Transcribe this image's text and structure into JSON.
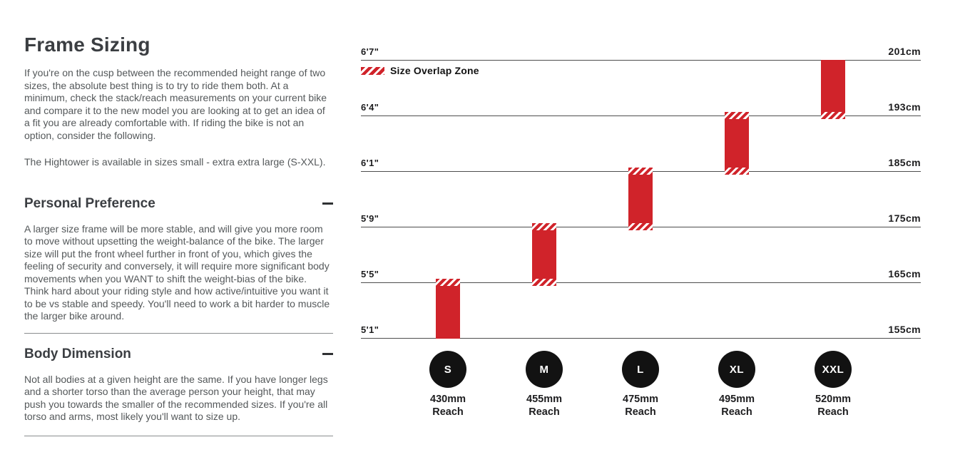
{
  "page": {
    "title": "Frame Sizing",
    "intro": "If you're on the cusp between the recommended height range of two sizes, the absolute best thing is to try to ride them both. At a minimum, check the stack/reach measurements on your current bike and compare it to the new model you are looking at to get an idea of a fit you are already comfortable with. If riding the bike is not an option, consider the following.",
    "availability": "The Hightower is available in sizes small - extra extra large (S-XXL).",
    "sections": [
      {
        "heading": "Personal Preference",
        "toggle_state": "expanded",
        "body": "A larger size frame will be more stable, and will give you more room to move without upsetting the weight-balance of the bike. The larger size will put the front wheel further in front of you, which gives the feeling of security and conversely, it will require more significant body movements when you WANT to shift the weight-bias of the bike. Think hard about your riding style and how active/intuitive you want it to be vs stable and speedy. You'll need to work a bit harder to muscle the larger bike around."
      },
      {
        "heading": "Body Dimension",
        "toggle_state": "expanded",
        "body": "Not all bodies at a given height are the same. If you have longer legs and a shorter torso than the average person your height, that may push you towards the smaller of the recommended sizes. If you're all torso and arms, most likely you'll want to size up."
      }
    ]
  },
  "chart_data": {
    "type": "bar",
    "title": "",
    "orientation": "vertical-range",
    "legend_label": "Size Overlap Zone",
    "legend_position": "top-left",
    "grid": true,
    "rows": [
      {
        "ft": "6'7\"",
        "cm_label": "201cm",
        "value": 201
      },
      {
        "ft": "6'4\"",
        "cm_label": "193cm",
        "value": 193
      },
      {
        "ft": "6'1\"",
        "cm_label": "185cm",
        "value": 185
      },
      {
        "ft": "5'9\"",
        "cm_label": "175cm",
        "value": 175
      },
      {
        "ft": "5'5\"",
        "cm_label": "165cm",
        "value": 165
      },
      {
        "ft": "5'1\"",
        "cm_label": "155cm",
        "value": 155
      }
    ],
    "series": [
      {
        "size": "S",
        "reach": "430mm",
        "height_range_cm": [
          155,
          165
        ],
        "overlap_top": true,
        "overlap_bottom": false
      },
      {
        "size": "M",
        "reach": "455mm",
        "height_range_cm": [
          165,
          175
        ],
        "overlap_top": true,
        "overlap_bottom": true
      },
      {
        "size": "L",
        "reach": "475mm",
        "height_range_cm": [
          175,
          185
        ],
        "overlap_top": true,
        "overlap_bottom": true
      },
      {
        "size": "XL",
        "reach": "495mm",
        "height_range_cm": [
          185,
          193
        ],
        "overlap_top": true,
        "overlap_bottom": true
      },
      {
        "size": "XXL",
        "reach": "520mm",
        "height_range_cm": [
          193,
          201
        ],
        "overlap_top": false,
        "overlap_bottom": true
      }
    ],
    "reach_suffix": "Reach",
    "colors": {
      "bar": "#d0232a",
      "circle": "#121212",
      "gridline": "#4d4d4d",
      "label": "#1d1d1f",
      "heading": "#3b3e42",
      "body_text": "#54585a"
    }
  }
}
